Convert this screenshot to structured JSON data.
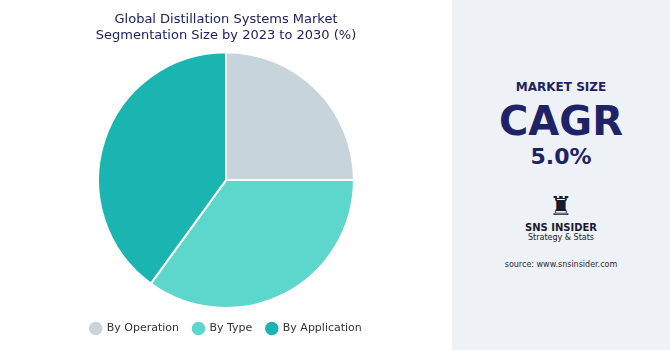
{
  "chart_data": {
    "type": "pie",
    "title": [
      "Global Distillation Systems Market",
      "Segmentation Size by 2023 to 2030 (%)"
    ],
    "categories": [
      "By Operation",
      "By Type",
      "By Application"
    ],
    "values": [
      25,
      35,
      40
    ],
    "colors": [
      "#c8d4db",
      "#5dd6cb",
      "#1ab5b0"
    ],
    "legend": "bottom",
    "annotations": [
      "MARKET SIZE",
      "CAGR",
      "5.0%",
      "♜",
      "SNS INSIDER",
      "Strategy & Stats",
      "source: www.snsinsider.com"
    ]
  }
}
